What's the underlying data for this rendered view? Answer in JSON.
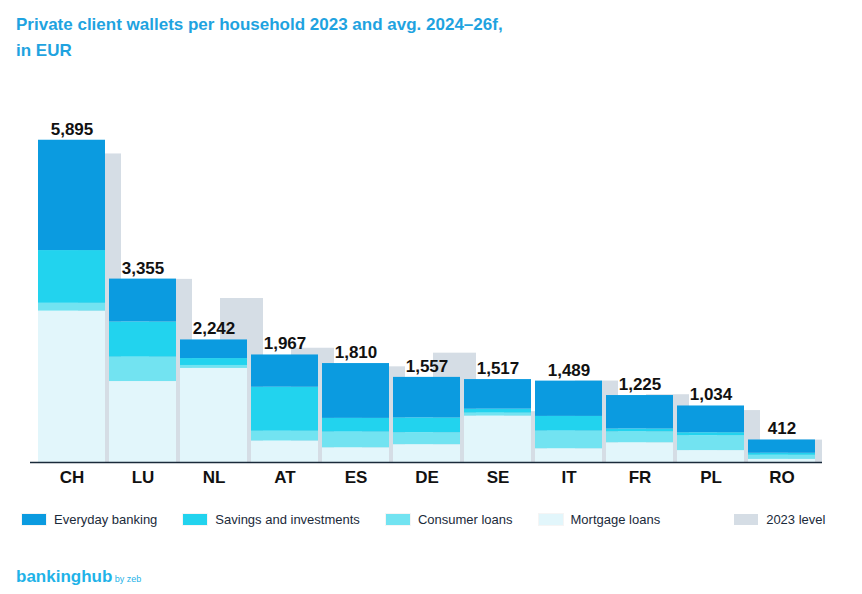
{
  "chart_data": {
    "type": "bar",
    "title": "Private client wallets per household 2023 and avg. 2024–26f,",
    "subtitle": "in EUR",
    "source": [
      "bankinghub",
      "by zeb"
    ],
    "categories": [
      "CH",
      "LU",
      "NL",
      "AT",
      "ES",
      "DE",
      "SE",
      "IT",
      "FR",
      "PL",
      "RO"
    ],
    "series": [
      {
        "name": "Everyday banking",
        "color": "#0b9be0",
        "values": [
          2018,
          785,
          341,
          590,
          1003,
          742,
          542,
          646,
          612,
          490,
          243
        ]
      },
      {
        "name": "Savings and investments",
        "color": "#22d3ee",
        "values": [
          965,
          643,
          126,
          805,
          251,
          272,
          72,
          269,
          54,
          54,
          37
        ]
      },
      {
        "name": "Consumer loans",
        "color": "#72e3f1",
        "values": [
          143,
          446,
          54,
          179,
          287,
          217,
          54,
          323,
          198,
          272,
          75
        ]
      },
      {
        "name": "Mortgage loans",
        "color": "#e2f6fb",
        "values": [
          2769,
          1481,
          1721,
          393,
          269,
          326,
          849,
          251,
          361,
          218,
          57
        ]
      },
      {
        "name": "2023 level",
        "color": "#d5dde5",
        "type": "overlay",
        "values": [
          5644,
          3350,
          3000,
          2090,
          1750,
          2000,
          930,
          1490,
          1240,
          950,
          410
        ]
      }
    ],
    "totals": [
      5895,
      3355,
      2242,
      1967,
      1810,
      1557,
      1517,
      1489,
      1225,
      1034,
      412
    ],
    "total_labels": [
      "5,895",
      "3,355",
      "2,242",
      "1,967",
      "1,810",
      "1,557",
      "1,517",
      "1,489",
      "1,225",
      "1,034",
      "412"
    ],
    "stacked": true,
    "data_labels": true,
    "tick_labels": "x",
    "ylim": [
      0,
      6000
    ],
    "yticks": [],
    "grid": false
  }
}
